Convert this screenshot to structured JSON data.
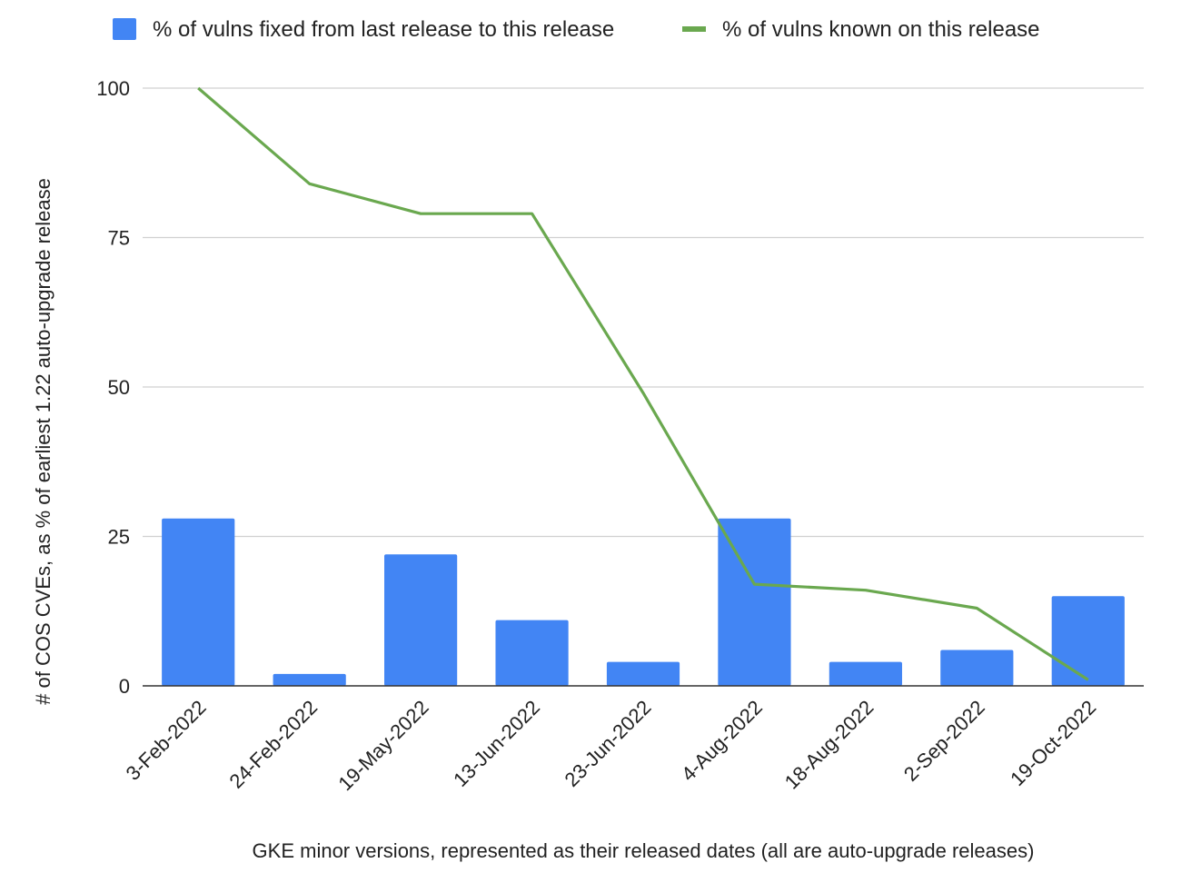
{
  "chart_data": {
    "type": "bar",
    "categories": [
      "3-Feb-2022",
      "24-Feb-2022",
      "19-May-2022",
      "13-Jun-2022",
      "23-Jun-2022",
      "4-Aug-2022",
      "18-Aug-2022",
      "2-Sep-2022",
      "19-Oct-2022"
    ],
    "series": [
      {
        "name": "% of vulns fixed from last release to this release",
        "kind": "bar",
        "color": "#4285f4",
        "values": [
          28,
          2,
          22,
          11,
          4,
          28,
          4,
          6,
          15
        ]
      },
      {
        "name": "% of vulns known on this release",
        "kind": "line",
        "color": "#6aa84f",
        "values": [
          100,
          84,
          79,
          79,
          49,
          17,
          16,
          13,
          1
        ]
      }
    ],
    "title": "",
    "xlabel": "GKE minor versions, represented as their released dates (all are auto-upgrade releases)",
    "ylabel": "# of COS CVEs, as % of earliest 1.22 auto-upgrade release",
    "ylim": [
      0,
      100
    ],
    "yticks": [
      "0",
      "25",
      "50",
      "75",
      "100"
    ],
    "grid": true,
    "legend_position": "top"
  }
}
